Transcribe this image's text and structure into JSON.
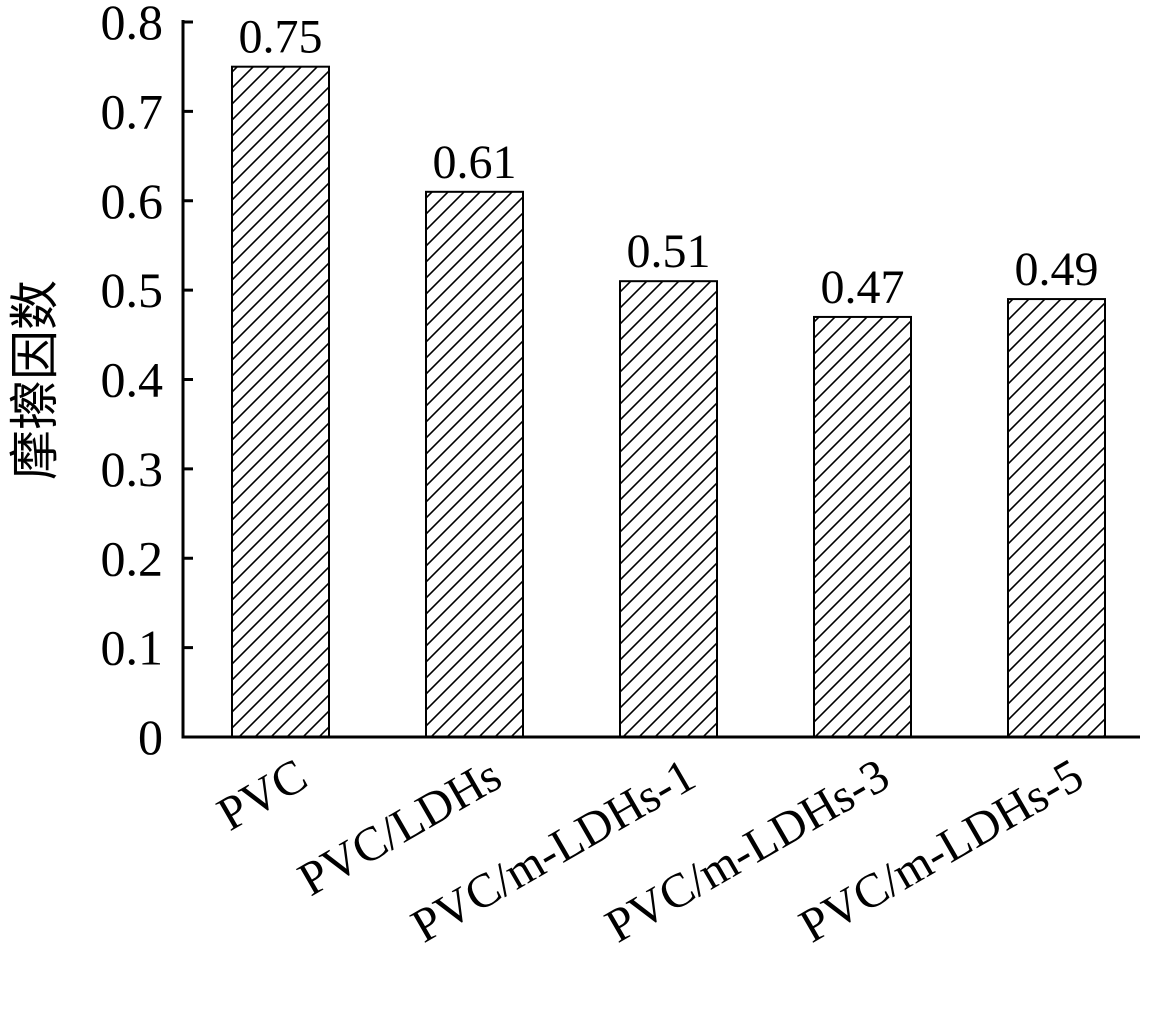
{
  "chart_data": {
    "type": "bar",
    "title": "",
    "xlabel": "",
    "ylabel": "摩擦因数",
    "categories": [
      "PVC",
      "PVC/LDHs",
      "PVC/m-LDHs-1",
      "PVC/m-LDHs-3",
      "PVC/m-LDHs-5"
    ],
    "values": [
      0.75,
      0.61,
      0.51,
      0.47,
      0.49
    ],
    "value_labels": [
      "0.75",
      "0.61",
      "0.51",
      "0.47",
      "0.49"
    ],
    "ylim": [
      0,
      0.8
    ],
    "yticks": [
      0,
      0.1,
      0.2,
      0.3,
      0.4,
      0.5,
      0.6,
      0.7,
      0.8
    ],
    "ytick_labels": [
      "0",
      "0.1",
      "0.2",
      "0.3",
      "0.4",
      "0.5",
      "0.6",
      "0.7",
      "0.8"
    ],
    "fill": "diagonal-hatch",
    "bar_color": "#000000",
    "grid": false,
    "legend": "none"
  }
}
